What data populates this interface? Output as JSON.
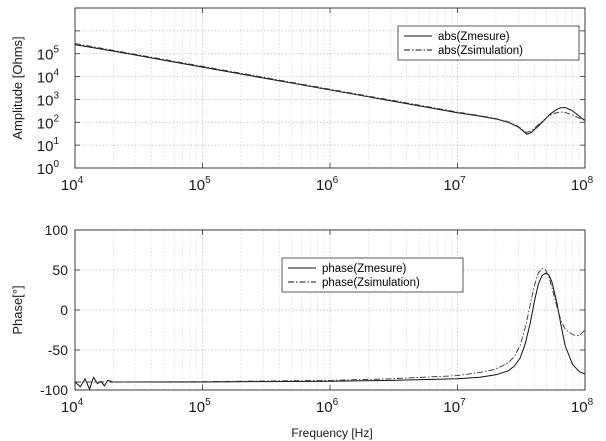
{
  "chart_data": [
    {
      "type": "line",
      "xscale": "log",
      "yscale": "log",
      "xlim": [
        10000,
        100000000
      ],
      "ylim": [
        1,
        10000000
      ],
      "xlabel": "",
      "ylabel": "Amplitude [Ohms]",
      "grid": true,
      "legend_position": "top-right",
      "x_tick_labels": [
        {
          "base": "10",
          "exp": "4"
        },
        {
          "base": "10",
          "exp": "5"
        },
        {
          "base": "10",
          "exp": "6"
        },
        {
          "base": "10",
          "exp": "7"
        },
        {
          "base": "10",
          "exp": "8"
        }
      ],
      "y_tick_labels": [
        {
          "base": "10",
          "exp": "0"
        },
        {
          "base": "10",
          "exp": "1"
        },
        {
          "base": "10",
          "exp": "2"
        },
        {
          "base": "10",
          "exp": "3"
        },
        {
          "base": "10",
          "exp": "4"
        },
        {
          "base": "10",
          "exp": "5"
        }
      ],
      "series": [
        {
          "name": "abs(Zmesure)",
          "style": "solid",
          "x": [
            10000,
            20000,
            50000,
            100000,
            200000,
            500000,
            1000000,
            2000000,
            5000000,
            10000000,
            15000000,
            20000000,
            25000000,
            30000000,
            33000000,
            35000000,
            38000000,
            42000000,
            47000000,
            52000000,
            58000000,
            64000000,
            70000000,
            78000000,
            86000000,
            93000000,
            100000000
          ],
          "y": [
            250000,
            130000,
            52000,
            26000,
            13000,
            5200,
            2600,
            1300,
            520,
            260,
            185,
            140,
            100,
            62,
            40,
            30,
            36,
            60,
            110,
            200,
            330,
            430,
            440,
            340,
            230,
            160,
            120
          ]
        },
        {
          "name": "abs(Zsimulation)",
          "style": "dashdot",
          "x": [
            10000,
            20000,
            50000,
            100000,
            200000,
            500000,
            1000000,
            2000000,
            5000000,
            10000000,
            15000000,
            20000000,
            25000000,
            30000000,
            33000000,
            35000000,
            38000000,
            42000000,
            47000000,
            52000000,
            58000000,
            64000000,
            70000000,
            78000000,
            86000000,
            93000000,
            100000000
          ],
          "y": [
            280000,
            140000,
            56000,
            28000,
            14000,
            5600,
            2800,
            1400,
            560,
            280,
            195,
            145,
            105,
            65,
            44,
            36,
            42,
            70,
            120,
            190,
            250,
            280,
            270,
            220,
            170,
            140,
            120
          ]
        }
      ]
    },
    {
      "type": "line",
      "xscale": "log",
      "yscale": "linear",
      "xlim": [
        10000,
        100000000
      ],
      "ylim": [
        -100,
        100
      ],
      "xlabel": "Frequency [Hz]",
      "ylabel": "Phase[°]",
      "grid": true,
      "legend_position": "top-center",
      "x_tick_labels": [
        {
          "base": "10",
          "exp": "4"
        },
        {
          "base": "10",
          "exp": "5"
        },
        {
          "base": "10",
          "exp": "6"
        },
        {
          "base": "10",
          "exp": "7"
        },
        {
          "base": "10",
          "exp": "8"
        }
      ],
      "y_ticks": [
        "100",
        "50",
        "0",
        "-50",
        "-100"
      ],
      "series": [
        {
          "name": "phase(Zmesure)",
          "style": "solid",
          "x": [
            10000,
            11000,
            12000,
            13000,
            14000,
            15000,
            16000,
            17000,
            18000,
            20000,
            30000,
            100000,
            300000,
            1000000,
            3000000,
            10000000,
            15000000,
            20000000,
            25000000,
            28000000,
            31000000,
            34000000,
            37000000,
            40000000,
            43000000,
            46000000,
            49000000,
            52000000,
            55000000,
            60000000,
            65000000,
            70000000,
            80000000,
            90000000,
            100000000
          ],
          "y": [
            -90,
            -96,
            -86,
            -99,
            -84,
            -92,
            -89,
            -95,
            -88,
            -90,
            -90,
            -90,
            -89.5,
            -89,
            -88,
            -86,
            -84,
            -81,
            -76,
            -70,
            -60,
            -42,
            -18,
            10,
            32,
            43,
            46,
            44,
            35,
            10,
            -20,
            -45,
            -68,
            -77,
            -80
          ]
        },
        {
          "name": "phase(Zsimulation)",
          "style": "dashdot",
          "x": [
            10000,
            20000,
            100000,
            1000000,
            3000000,
            10000000,
            15000000,
            20000000,
            25000000,
            28000000,
            31000000,
            34000000,
            37000000,
            40000000,
            43000000,
            46000000,
            49000000,
            52000000,
            55000000,
            60000000,
            65000000,
            70000000,
            80000000,
            90000000,
            100000000
          ],
          "y": [
            -90,
            -90,
            -89.5,
            -88,
            -86,
            -82,
            -78,
            -74,
            -66,
            -58,
            -44,
            -22,
            5,
            30,
            46,
            52,
            50,
            42,
            28,
            5,
            -14,
            -24,
            -31,
            -32,
            -25
          ]
        }
      ]
    }
  ]
}
